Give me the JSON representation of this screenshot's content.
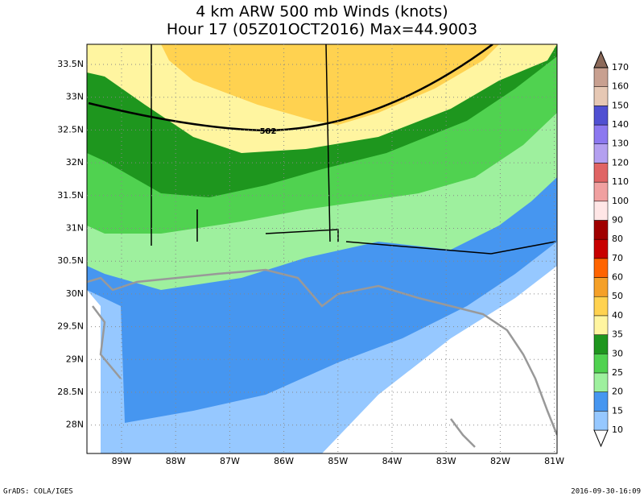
{
  "title": "4 km ARW 500 mb Winds (knots)",
  "subtitle": "Hour 17 (05Z01OCT2016) Max=44.9003",
  "lat_labels": [
    "33.5N",
    "33N",
    "32.5N",
    "32N",
    "31.5N",
    "31N",
    "30.5N",
    "30N",
    "29.5N",
    "29N",
    "28.5N",
    "28N"
  ],
  "lon_labels": [
    "89W",
    "88W",
    "87W",
    "86W",
    "85W",
    "84W",
    "83W",
    "82W",
    "81W"
  ],
  "contour_label": "582",
  "colorbar": {
    "levels": [
      10,
      15,
      20,
      25,
      30,
      35,
      40,
      50,
      60,
      70,
      80,
      90,
      100,
      110,
      120,
      130,
      140,
      150,
      160,
      170
    ],
    "colors": [
      "#ffffff",
      "#96c8ff",
      "#4696f0",
      "#9ef09e",
      "#50d250",
      "#1e961e",
      "#fff5a0",
      "#ffd250",
      "#f5a028",
      "#ff6400",
      "#c80000",
      "#a00000",
      "#ffe6e6",
      "#f0a0a0",
      "#e06464",
      "#b4a0f0",
      "#8c78f0",
      "#5050d2",
      "#e6c8b4",
      "#c8a090",
      "#8c6a5a"
    ]
  },
  "footer_left": "GrADS: COLA/IGES",
  "footer_right": "2016-09-30-16:09"
}
